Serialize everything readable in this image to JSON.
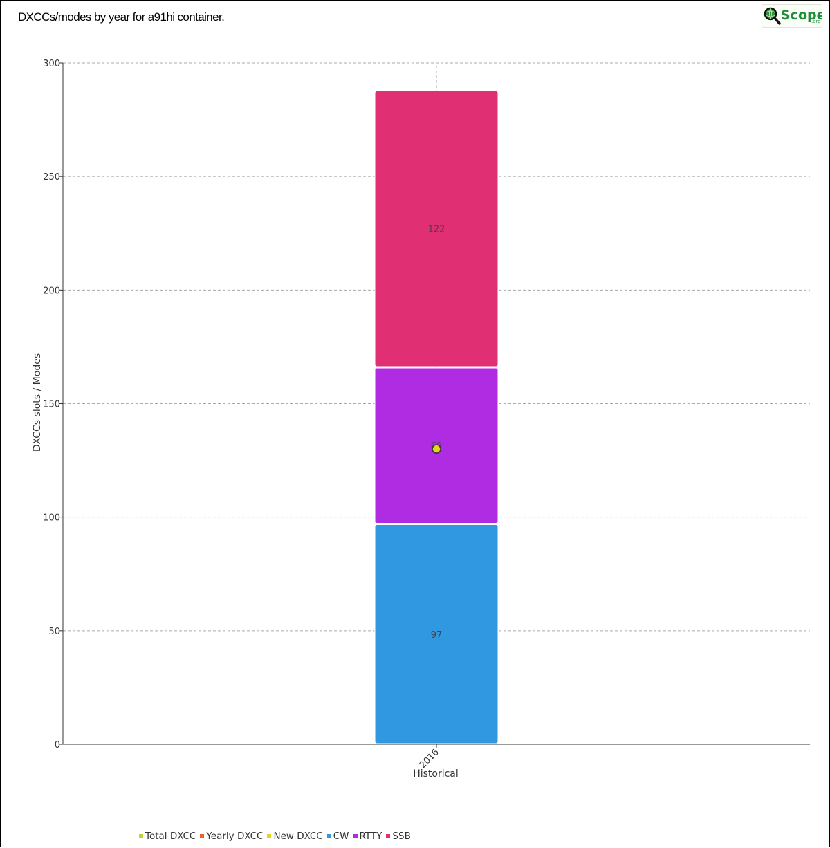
{
  "title": "DXCCs/modes by year for a91hi container.",
  "logo": {
    "text_main": "Scope",
    "text_suffix": ".org"
  },
  "colors": {
    "total_dxcc": "#b9d63b",
    "yearly_dxcc": "#e8622a",
    "new_dxcc": "#e7d21f",
    "cw": "#3098e0",
    "rtty": "#b02ce2",
    "ssb": "#e02f72",
    "grid": "#aaaaaa"
  },
  "chart_data": {
    "type": "bar",
    "stacked": true,
    "title": "DXCCs/modes by year for a91hi container.",
    "xlabel": "Historical",
    "ylabel": "DXCCs slots / Modes",
    "categories": [
      "2016"
    ],
    "ylim": [
      0,
      300
    ],
    "yticks": [
      0,
      50,
      100,
      150,
      200,
      250,
      300
    ],
    "grid": true,
    "legend_position": "bottom",
    "series": [
      {
        "name": "CW",
        "values": [
          97
        ],
        "label": "97",
        "color_key": "cw"
      },
      {
        "name": "RTTY",
        "values": [
          69
        ],
        "label": "69",
        "color_key": "rtty"
      },
      {
        "name": "SSB",
        "values": [
          122
        ],
        "label": "122",
        "color_key": "ssb"
      }
    ],
    "line_series": [
      {
        "name": "New DXCC",
        "values": [
          130
        ],
        "color_key": "new_dxcc"
      }
    ],
    "legend": [
      {
        "name": "Total DXCC",
        "color_key": "total_dxcc"
      },
      {
        "name": "Yearly DXCC",
        "color_key": "yearly_dxcc"
      },
      {
        "name": "New DXCC",
        "color_key": "new_dxcc"
      },
      {
        "name": "CW",
        "color_key": "cw"
      },
      {
        "name": "RTTY",
        "color_key": "rtty"
      },
      {
        "name": "SSB",
        "color_key": "ssb"
      }
    ]
  }
}
